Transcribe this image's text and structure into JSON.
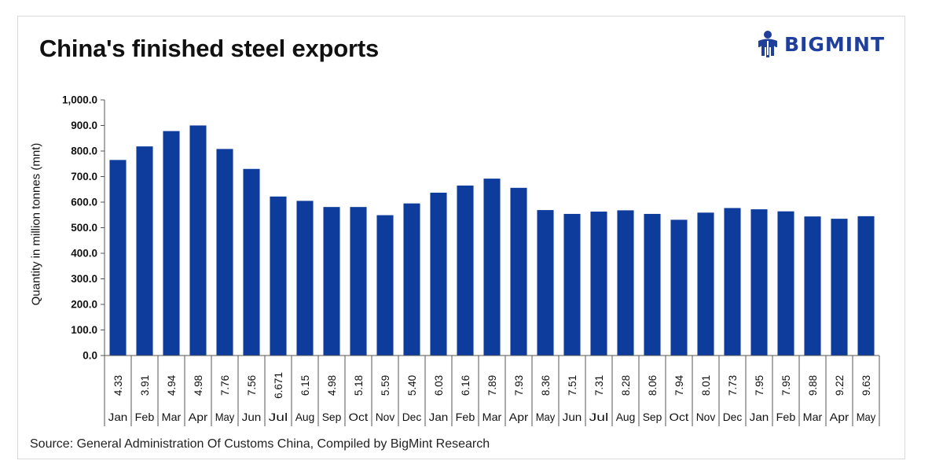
{
  "title": "China's finished steel exports",
  "logo": {
    "text": "BIGMINT",
    "icon": "bigmint-figure-icon",
    "color": "#1f3f9a"
  },
  "source": "Source: General Administration Of Customs China, Compiled by BigMint Research",
  "colors": {
    "bar": "#0d3c9c"
  },
  "chart_data": {
    "type": "bar",
    "ylabel": "Quantity in million tonnes (mnt)",
    "ylim": [
      0,
      1000
    ],
    "yticks": [
      "0.0",
      "100.0",
      "200.0",
      "300.0",
      "400.0",
      "500.0",
      "600.0",
      "700.0",
      "800.0",
      "900.0",
      "1,000.0"
    ],
    "grid": false,
    "categories": [
      "Jan",
      "Feb",
      "Mar",
      "Apr",
      "May",
      "Jun",
      "Jul",
      "Aug",
      "Sep",
      "Oct",
      "Nov",
      "Dec",
      "Jan",
      "Feb",
      "Mar",
      "Apr",
      "May",
      "Jun",
      "Jul",
      "Aug",
      "Sep",
      "Oct",
      "Nov",
      "Dec",
      "Jan",
      "Feb",
      "Mar",
      "Apr",
      "May"
    ],
    "table_row": [
      "4.33",
      "3.91",
      "4.94",
      "4.98",
      "7.76",
      "7.56",
      "6.671",
      "6.15",
      "4.98",
      "5.18",
      "5.59",
      "5.40",
      "6.03",
      "6.16",
      "7.89",
      "7.93",
      "8.36",
      "7.51",
      "7.31",
      "8.28",
      "8.06",
      "7.94",
      "8.01",
      "7.73",
      "7.95",
      "7.95",
      "9.88",
      "9.22",
      "9.63"
    ],
    "values": [
      765,
      818,
      878,
      900,
      808,
      730,
      622,
      605,
      581,
      581,
      549,
      595,
      637,
      665,
      692,
      656,
      569,
      554,
      563,
      568,
      554,
      531,
      559,
      577,
      572,
      564,
      544,
      535,
      545
    ]
  }
}
